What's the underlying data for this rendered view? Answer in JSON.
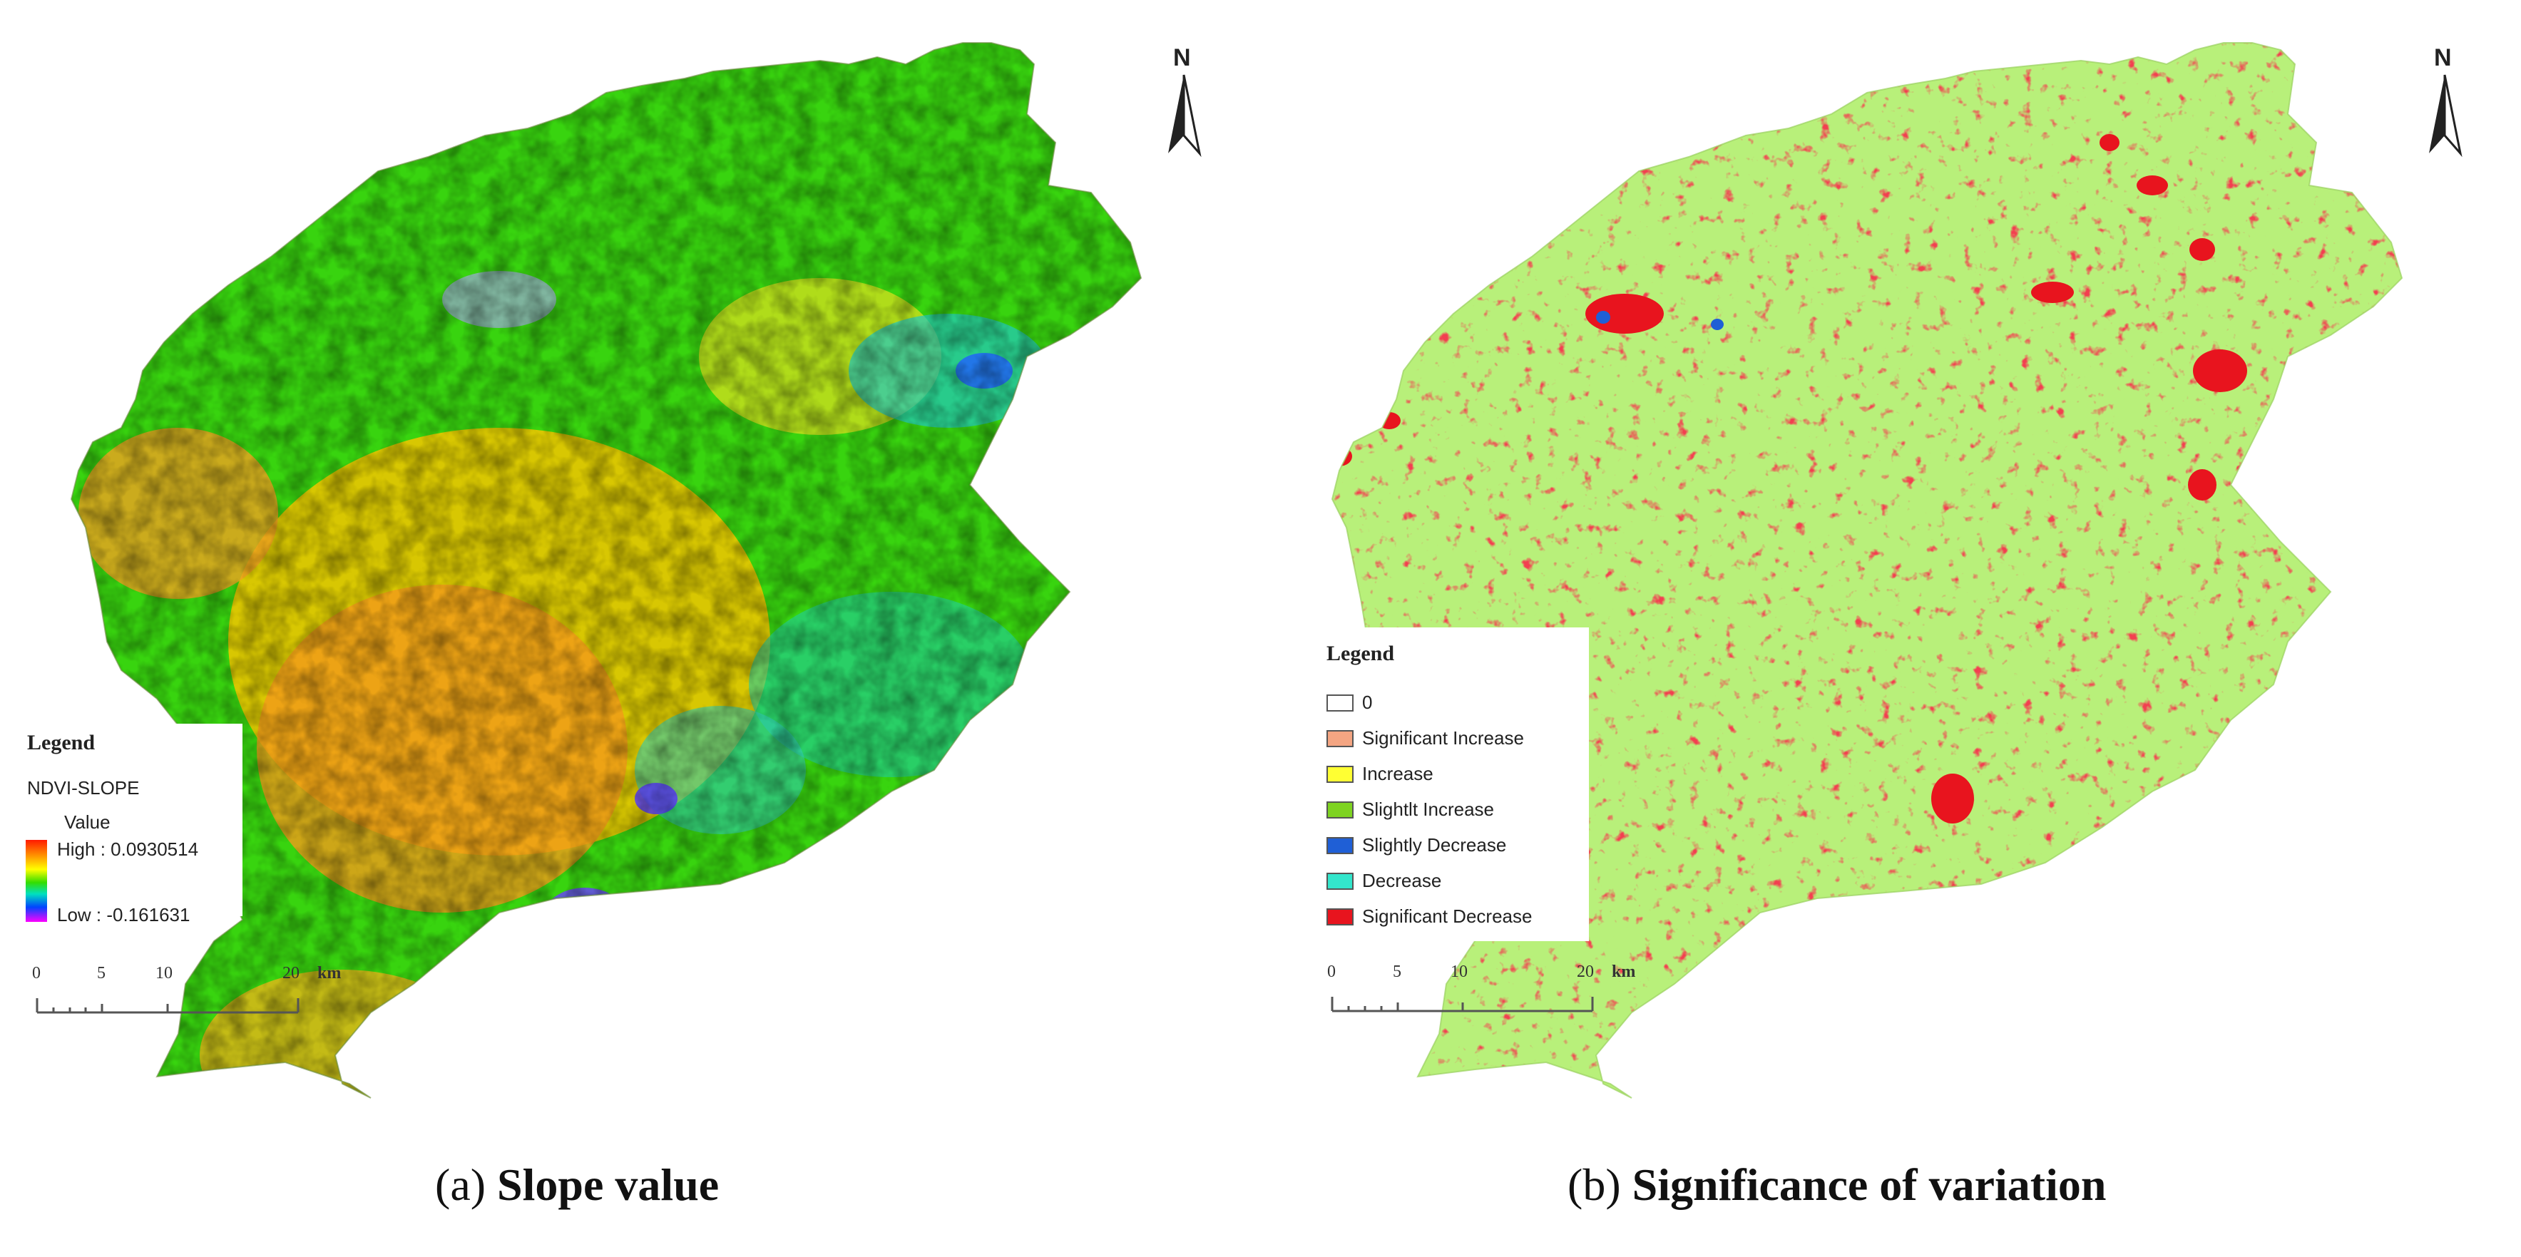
{
  "panel_a": {
    "caption_letter": "a",
    "caption_text": "Slope value",
    "north": "N",
    "legend": {
      "title": "Legend",
      "layer": "NDVI-SLOPE",
      "field": "Value",
      "high": "High : 0.0930514",
      "low": "Low : -0.161631",
      "ramp_colors": [
        "#ff1a00",
        "#ff8c00",
        "#ffff00",
        "#33dd00",
        "#00e0c0",
        "#0044ff",
        "#ff00ff"
      ]
    },
    "scale": {
      "ticks": [
        "0",
        "5",
        "10",
        "20"
      ],
      "unit": "km"
    }
  },
  "panel_b": {
    "caption_letter": "b",
    "caption_text": "Significance of variation",
    "north": "N",
    "legend": {
      "title": "Legend",
      "items": [
        {
          "label": "0",
          "color": "#ffffff"
        },
        {
          "label": "Significant Increase",
          "color": "#f4a582"
        },
        {
          "label": "Increase",
          "color": "#ffff33"
        },
        {
          "label": "Slightlt Increase",
          "color": "#7ed321"
        },
        {
          "label": "Slightly Decrease",
          "color": "#1f5fd6"
        },
        {
          "label": "Decrease",
          "color": "#33e6cc"
        },
        {
          "label": "Significant Decrease",
          "color": "#e8141e"
        }
      ]
    },
    "scale": {
      "ticks": [
        "0",
        "5",
        "10",
        "20"
      ],
      "unit": "km"
    }
  }
}
